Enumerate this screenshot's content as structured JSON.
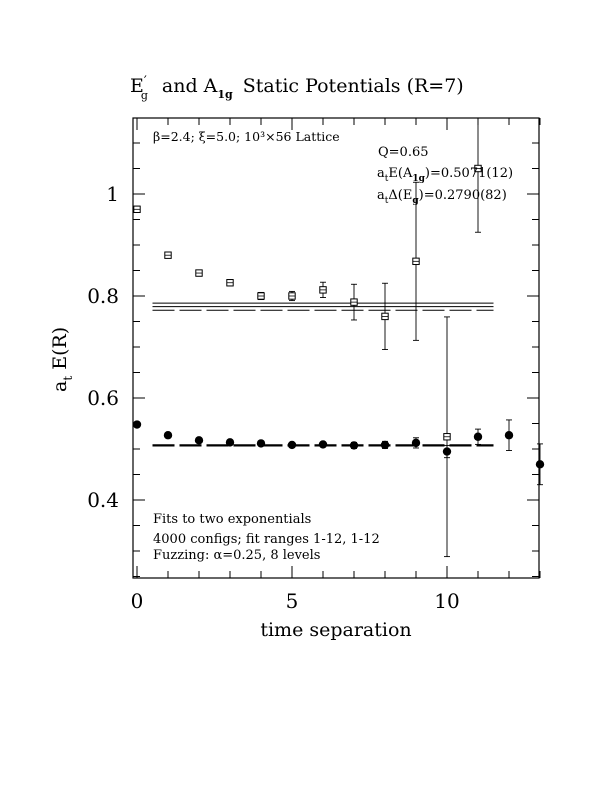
{
  "chart_data": {
    "type": "scatter",
    "title": {
      "e_letter": "E",
      "e_sub": "g",
      "e_prime": "′",
      "and_text": "and A",
      "a_sub": "1g",
      "rest": "Static Potentials (R=7)"
    },
    "xlabel": "time separation",
    "ylabel": {
      "main": "a",
      "sub": "t",
      "rest": " E(R)"
    },
    "xlim": [
      0,
      13
    ],
    "ylim": [
      0.25,
      1.15
    ],
    "x_ticks": [
      {
        "value": 0,
        "label": "0"
      },
      {
        "value": 5,
        "label": "5"
      },
      {
        "value": 10,
        "label": "10"
      }
    ],
    "y_ticks": [
      {
        "value": 0.4,
        "label": "0.4"
      },
      {
        "value": 0.6,
        "label": "0.6"
      },
      {
        "value": 0.8,
        "label": "0.8"
      },
      {
        "value": 1.0,
        "label": "1"
      }
    ],
    "annotations": {
      "lattice": "β=2.4; ξ=5.0; 10³×56 Lattice",
      "q_value": "Q=0.65",
      "energy_a1g": {
        "pre": "a",
        "sub1": "t",
        "mid": "E(A",
        "sub2": "1g",
        "post": ")=0.5071(12)"
      },
      "gap_eg": {
        "pre": "a",
        "sub1": "t",
        "mid": "Δ(E",
        "sub2": "g",
        "post": ")=0.2790(82)"
      },
      "fits": "Fits to two exponentials",
      "configs": "4000 configs; fit ranges 1-12, 1-12",
      "fuzzing": "Fuzzing: α=0.25, 8 levels"
    },
    "series": [
      {
        "marker": "open-square",
        "points": [
          {
            "x": 0,
            "y": 0.97,
            "err": 0.006
          },
          {
            "x": 1,
            "y": 0.88,
            "err": 0.005
          },
          {
            "x": 2,
            "y": 0.845,
            "err": 0.006
          },
          {
            "x": 3,
            "y": 0.826,
            "err": 0.006
          },
          {
            "x": 4,
            "y": 0.8,
            "err": 0.007
          },
          {
            "x": 5,
            "y": 0.8,
            "err": 0.009
          },
          {
            "x": 6,
            "y": 0.812,
            "err": 0.015
          },
          {
            "x": 7,
            "y": 0.788,
            "err": 0.035
          },
          {
            "x": 8,
            "y": 0.76,
            "err": 0.065
          },
          {
            "x": 9,
            "y": 0.868,
            "err": 0.155
          },
          {
            "x": 10,
            "y": 0.524,
            "err": 0.235
          },
          {
            "x": 11,
            "y": 1.05,
            "err": 0.125
          }
        ]
      },
      {
        "marker": "filled-circle",
        "points": [
          {
            "x": 0,
            "y": 0.548,
            "err": 0.003
          },
          {
            "x": 1,
            "y": 0.527,
            "err": 0.003
          },
          {
            "x": 2,
            "y": 0.517,
            "err": 0.003
          },
          {
            "x": 3,
            "y": 0.513,
            "err": 0.003
          },
          {
            "x": 4,
            "y": 0.511,
            "err": 0.003
          },
          {
            "x": 5,
            "y": 0.508,
            "err": 0.004
          },
          {
            "x": 6,
            "y": 0.509,
            "err": 0.005
          },
          {
            "x": 7,
            "y": 0.507,
            "err": 0.006
          },
          {
            "x": 8,
            "y": 0.508,
            "err": 0.007
          },
          {
            "x": 9,
            "y": 0.512,
            "err": 0.01
          },
          {
            "x": 10,
            "y": 0.495,
            "err": 0.012
          },
          {
            "x": 11,
            "y": 0.524,
            "err": 0.015
          },
          {
            "x": 12,
            "y": 0.527,
            "err": 0.03
          },
          {
            "x": 13,
            "y": 0.47,
            "err": 0.04
          }
        ]
      }
    ],
    "fit_lines": [
      {
        "x": [
          0.5,
          11.5
        ],
        "y": 0.7861,
        "style": "solid-thin"
      },
      {
        "x": [
          0.5,
          11.5
        ],
        "y": 0.7791,
        "style": "solid-thin"
      },
      {
        "x": [
          0.5,
          11.5
        ],
        "y": 0.7721,
        "style": "dashed"
      },
      {
        "x": [
          0.5,
          11.5
        ],
        "y": 0.5071,
        "style": "dashed-thick"
      }
    ]
  }
}
